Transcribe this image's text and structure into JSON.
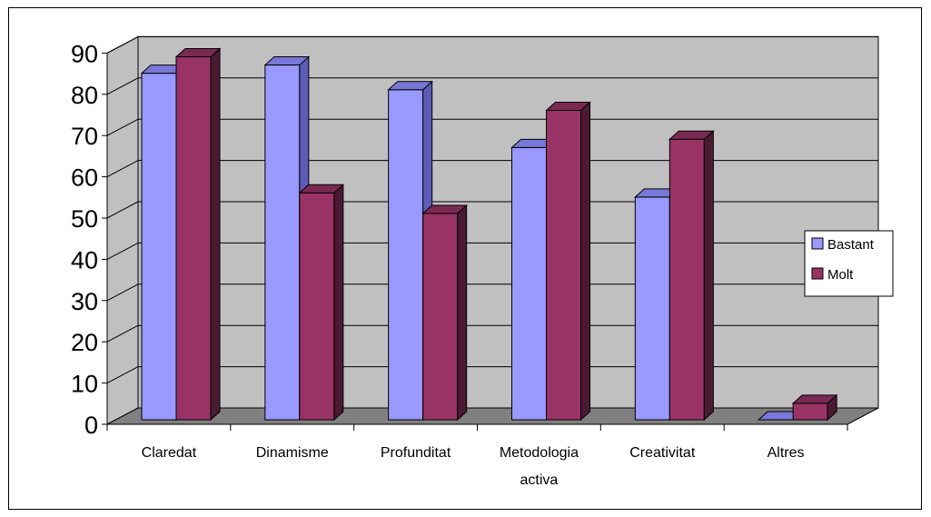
{
  "chart_data": {
    "type": "bar",
    "categories": [
      "Claredat",
      "Dinamisme",
      "Profunditat",
      "Metodologia activa",
      "Creativitat",
      "Altres"
    ],
    "category_lines": [
      [
        "Claredat"
      ],
      [
        "Dinamisme"
      ],
      [
        "Profunditat"
      ],
      [
        "Metodologia",
        "activa"
      ],
      [
        "Creativitat"
      ],
      [
        "Altres"
      ]
    ],
    "series": [
      {
        "name": "Bastant",
        "values": [
          84,
          86,
          80,
          66,
          54,
          0
        ],
        "color": "#9999ff",
        "side": "#5c5cb8",
        "top": "#7878d8"
      },
      {
        "name": "Molt",
        "values": [
          88,
          55,
          50,
          75,
          68,
          4
        ],
        "color": "#993366",
        "side": "#4a1a33",
        "top": "#7a2a52"
      }
    ],
    "ylim": [
      0,
      90
    ],
    "yticks": [
      "0",
      "10",
      "20",
      "30",
      "40",
      "50",
      "60",
      "70",
      "80",
      "90"
    ],
    "grid": true,
    "legend": "right",
    "wall_color": "#c0c0c0",
    "floor_color": "#808080"
  }
}
